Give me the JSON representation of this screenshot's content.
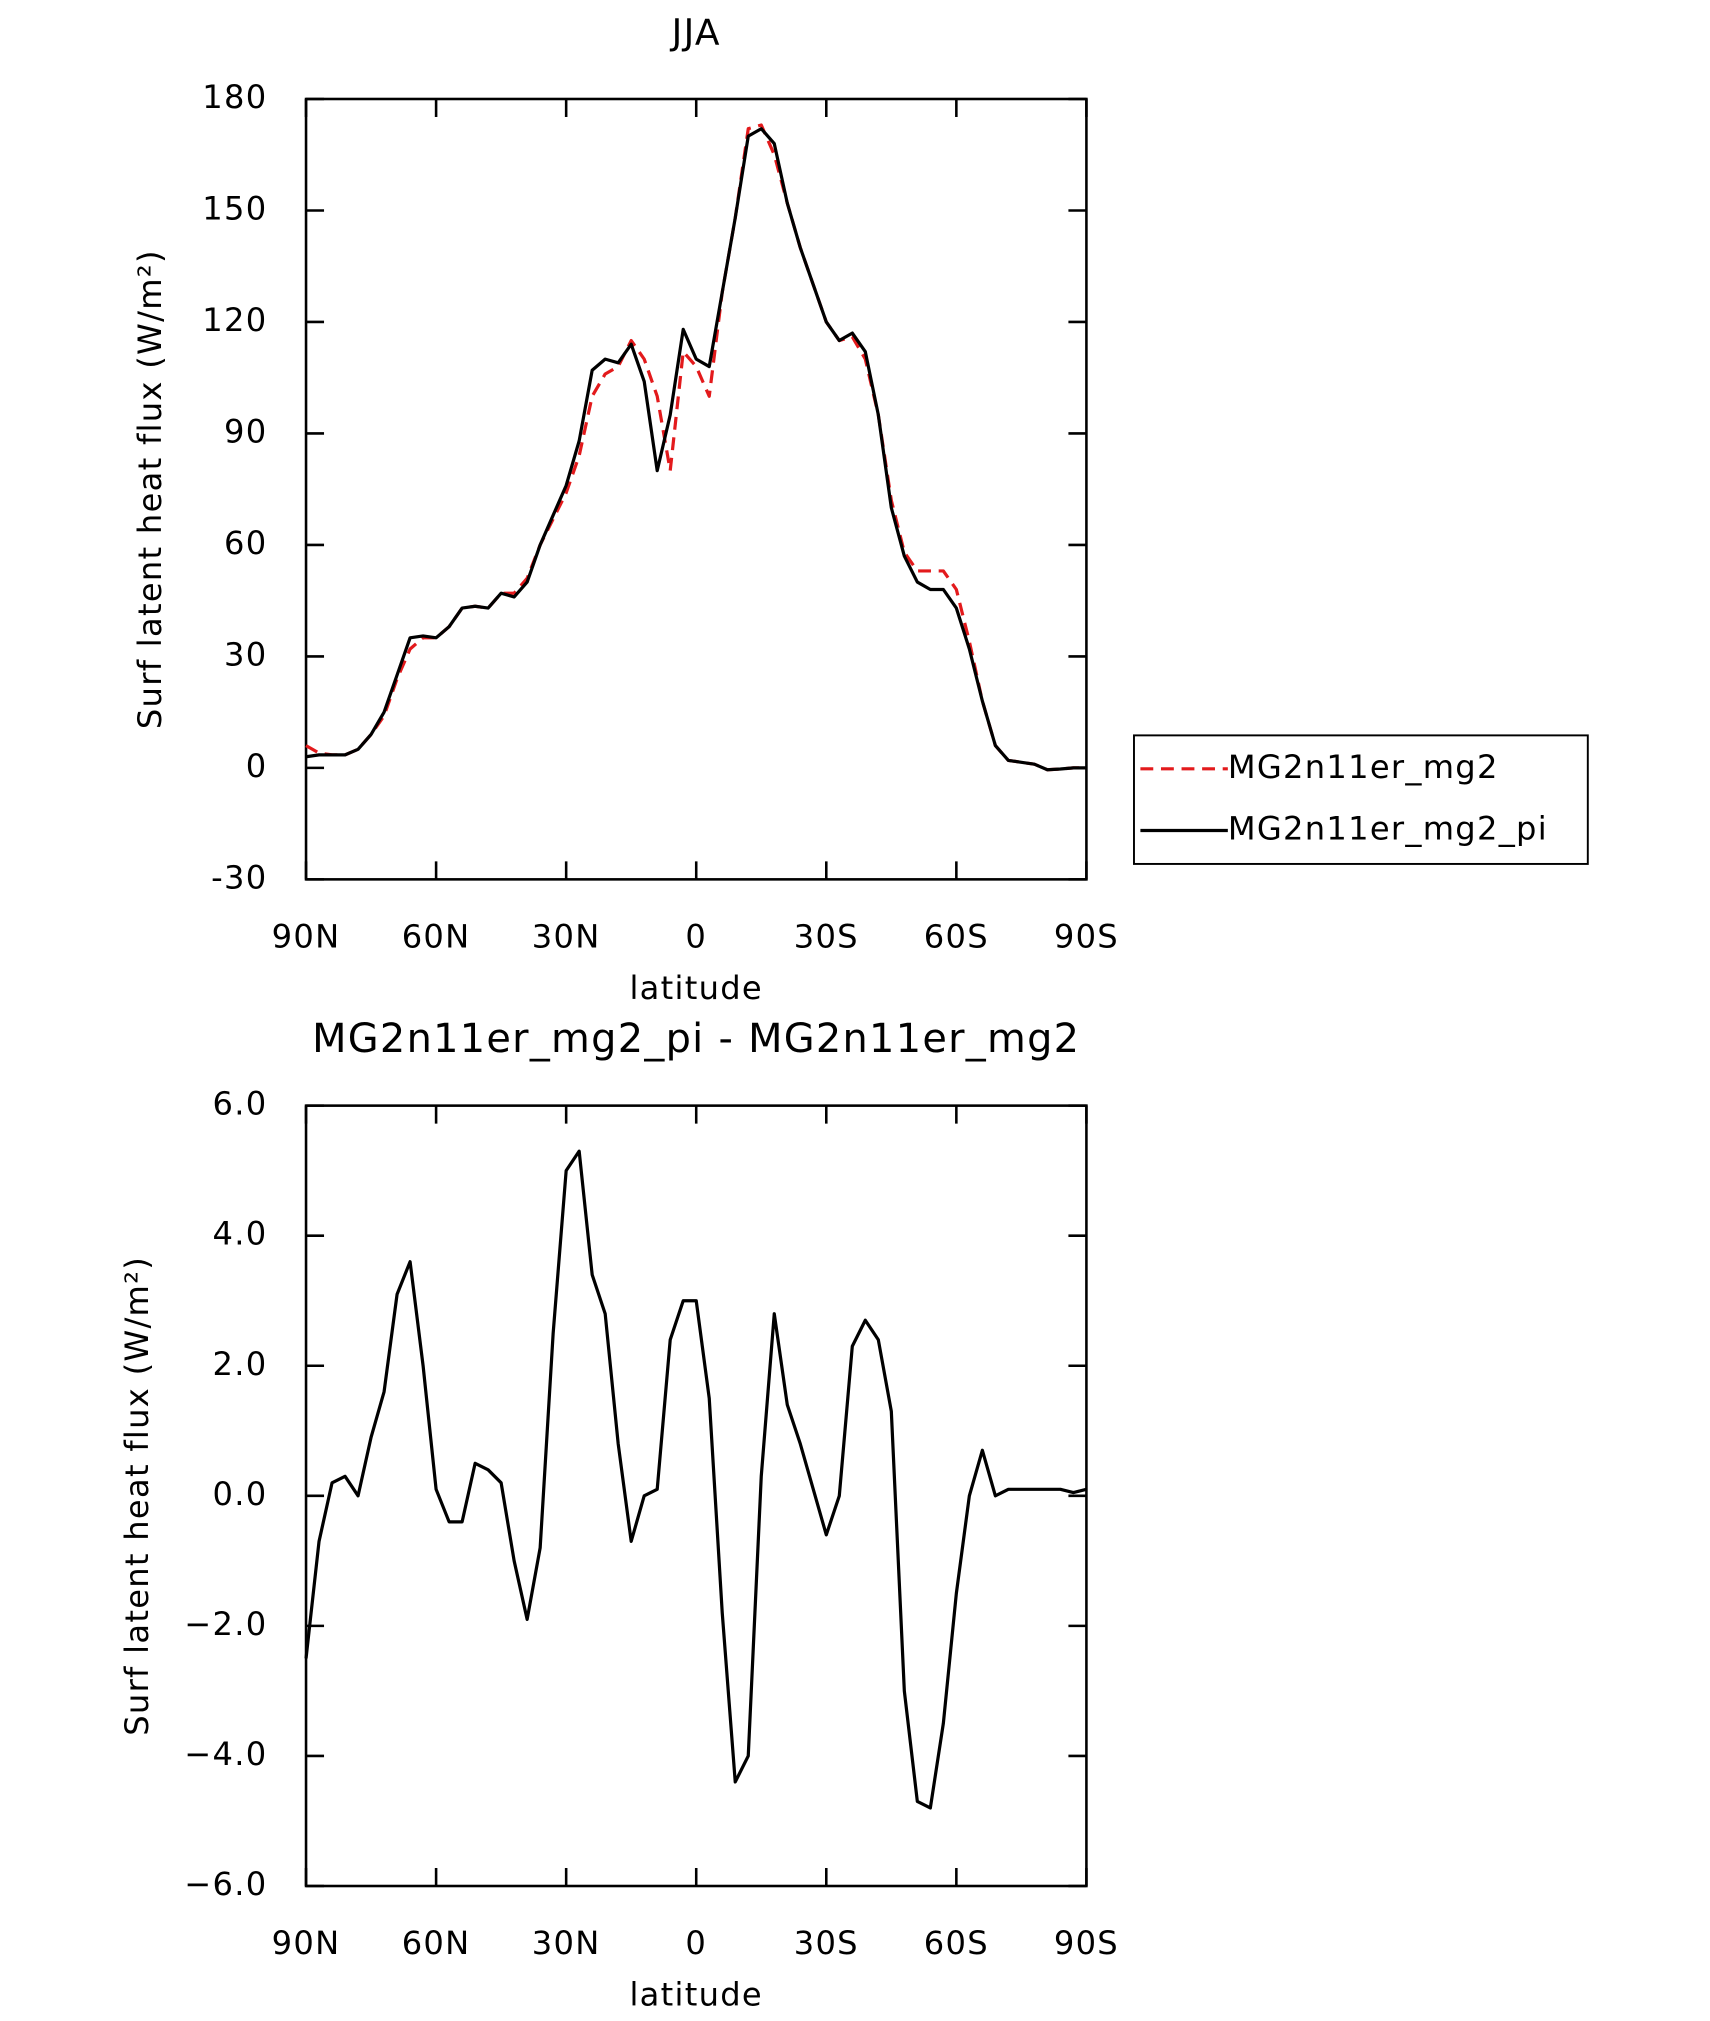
{
  "chart_data": [
    {
      "type": "line",
      "title": "JJA",
      "xlabel": "latitude",
      "ylabel": "Surf latent heat flux (W/m²)",
      "x": [
        90,
        87,
        84,
        81,
        78,
        75,
        72,
        69,
        66,
        63,
        60,
        57,
        54,
        51,
        48,
        45,
        42,
        39,
        36,
        33,
        30,
        27,
        24,
        21,
        18,
        15,
        12,
        9,
        6,
        3,
        0,
        -3,
        -6,
        -9,
        -12,
        -15,
        -18,
        -21,
        -24,
        -27,
        -30,
        -33,
        -36,
        -39,
        -42,
        -45,
        -48,
        -51,
        -54,
        -57,
        -60,
        -63,
        -66,
        -69,
        -72,
        -75,
        -78,
        -81,
        -84,
        -87,
        -90
      ],
      "series": [
        {
          "name": "MG2n11er_mg2",
          "color": "#e31a1c",
          "dash": true,
          "values": [
            6,
            4,
            3.5,
            3.5,
            5,
            9,
            14,
            24,
            32,
            35,
            35,
            38,
            43,
            43.5,
            43,
            47,
            47,
            51,
            60,
            67,
            74,
            84,
            100,
            106,
            108,
            115,
            110,
            100,
            80,
            112,
            108,
            100,
            128,
            148,
            172,
            173,
            165,
            152,
            140,
            130,
            120,
            115,
            116,
            110,
            95,
            72,
            58,
            53,
            53,
            53,
            48,
            34,
            18,
            6,
            2,
            1.5,
            1,
            -0.5,
            -0.3,
            0,
            0
          ]
        },
        {
          "name": "MG2n11er_mg2_pi",
          "color": "#000000",
          "dash": false,
          "values": [
            3,
            3.5,
            3.5,
            3.5,
            5,
            9,
            15,
            25,
            35,
            35.5,
            35,
            38,
            43,
            43.5,
            43,
            47,
            46,
            50,
            60,
            68,
            76,
            88,
            107,
            110,
            109,
            114,
            104,
            80,
            95,
            118,
            110,
            108,
            128,
            148,
            170,
            172,
            168,
            152,
            140,
            130,
            120,
            115,
            117,
            112,
            95,
            70,
            57,
            50,
            48,
            48,
            43,
            32,
            18,
            6,
            2,
            1.5,
            1,
            -0.5,
            -0.3,
            0,
            0
          ]
        }
      ],
      "xlim": [
        90,
        -90
      ],
      "xticks": [
        {
          "value": 90,
          "label": "90N"
        },
        {
          "value": 60,
          "label": "60N"
        },
        {
          "value": 30,
          "label": "30N"
        },
        0,
        {
          "value": -30,
          "label": "30S"
        },
        {
          "value": -60,
          "label": "60S"
        },
        {
          "value": -90,
          "label": "90S"
        }
      ],
      "ylim": [
        -30,
        180
      ],
      "yticks": [
        -30,
        0,
        30,
        60,
        90,
        120,
        150,
        180
      ],
      "legend": "right"
    },
    {
      "type": "line",
      "title": "MG2n11er_mg2_pi - MG2n11er_mg2",
      "xlabel": "latitude",
      "ylabel": "Surf latent heat flux (W/m²)",
      "x": [
        90,
        87,
        84,
        81,
        78,
        75,
        72,
        69,
        66,
        63,
        60,
        57,
        54,
        51,
        48,
        45,
        42,
        39,
        36,
        33,
        30,
        27,
        24,
        21,
        18,
        15,
        12,
        9,
        6,
        3,
        0,
        -3,
        -6,
        -9,
        -12,
        -15,
        -18,
        -21,
        -24,
        -27,
        -30,
        -33,
        -36,
        -39,
        -42,
        -45,
        -48,
        -51,
        -54,
        -57,
        -60,
        -63,
        -66,
        -69,
        -72,
        -75,
        -78,
        -81,
        -84,
        -87,
        -90
      ],
      "series": [
        {
          "color": "#000000",
          "dash": false,
          "values": [
            -2.5,
            -0.7,
            0.2,
            0.3,
            0,
            0.9,
            1.6,
            3.1,
            3.6,
            2.0,
            0.1,
            -0.4,
            -0.4,
            0.5,
            0.4,
            0.2,
            -1.0,
            -1.9,
            -0.8,
            2.5,
            5.0,
            5.3,
            3.4,
            2.8,
            0.8,
            -0.7,
            0,
            0.1,
            2.4,
            3.0,
            3.0,
            1.5,
            -1.8,
            -4.4,
            -4.0,
            0.3,
            2.8,
            1.4,
            0.8,
            0.1,
            -0.6,
            0,
            2.3,
            2.7,
            2.4,
            1.3,
            -3.0,
            -4.7,
            -4.8,
            -3.5,
            -1.5,
            0,
            0.7,
            0,
            0.1,
            0.1,
            0.1,
            0.1,
            0.1,
            0.05,
            0.1
          ]
        }
      ],
      "xlim": [
        90,
        -90
      ],
      "xticks": [
        {
          "value": 90,
          "label": "90N"
        },
        {
          "value": 60,
          "label": "60N"
        },
        {
          "value": 30,
          "label": "30N"
        },
        0,
        {
          "value": -30,
          "label": "30S"
        },
        {
          "value": -60,
          "label": "60S"
        },
        {
          "value": -90,
          "label": "90S"
        }
      ],
      "ylim": [
        -6,
        6
      ],
      "yticks": [
        {
          "value": -6,
          "label": "−6.0"
        },
        {
          "value": -4,
          "label": "−4.0"
        },
        {
          "value": -2,
          "label": "−2.0"
        },
        {
          "value": 0,
          "label": "0.0"
        },
        {
          "value": 2,
          "label": "2.0"
        },
        {
          "value": 4,
          "label": "4.0"
        },
        {
          "value": 6,
          "label": "6.0"
        }
      ]
    }
  ]
}
